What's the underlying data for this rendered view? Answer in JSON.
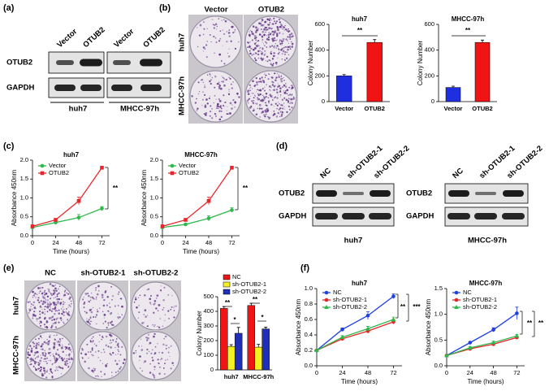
{
  "panel_labels": [
    "(a)",
    "(b)",
    "(c)",
    "(d)",
    "(e)",
    "(f)"
  ],
  "blot_a": {
    "lanes": [
      "Vector",
      "OTUB2",
      "Vector",
      "OTUB2"
    ],
    "rows": [
      "OTUB2",
      "GAPDH"
    ],
    "groups": [
      "huh7",
      "MHCC-97h"
    ]
  },
  "colony_b": {
    "columns": [
      "Vector",
      "OTUB2"
    ],
    "rows": [
      "huh7",
      "MHCC-97h"
    ]
  },
  "blot_d": [
    {
      "lanes": [
        "NC",
        "sh-OTUB2-1",
        "sh-OTUB2-2"
      ],
      "rows": [
        "OTUB2",
        "GAPDH"
      ],
      "group": "huh7"
    },
    {
      "lanes": [
        "NC",
        "sh-OTUB2-1",
        "sh-OTUB2-2"
      ],
      "rows": [
        "OTUB2",
        "GAPDH"
      ],
      "group": "MHCC-97h"
    }
  ],
  "colony_e": {
    "columns": [
      "NC",
      "sh-OTUB2-1",
      "sh-OTUB2-2"
    ],
    "rows": [
      "huh7",
      "MHCC-97h"
    ]
  },
  "chart_data": [
    {
      "type": "bar",
      "title": "huh7",
      "ylabel": "Colony Number",
      "categories": [
        "Vector",
        "OTUB2"
      ],
      "values": [
        200,
        460
      ],
      "errors": [
        10,
        22
      ],
      "colors": [
        "#1f2fe0",
        "#f01414"
      ],
      "ylim": [
        0,
        600
      ],
      "yticks": [
        0,
        200,
        400,
        600
      ],
      "annotations": [
        "**"
      ]
    },
    {
      "type": "bar",
      "title": "MHCC-97h",
      "ylabel": "Colony Number",
      "categories": [
        "Vector",
        "OTUB2"
      ],
      "values": [
        110,
        460
      ],
      "errors": [
        10,
        18
      ],
      "colors": [
        "#1f2fe0",
        "#f01414"
      ],
      "ylim": [
        0,
        600
      ],
      "yticks": [
        0,
        200,
        400,
        600
      ],
      "annotations": [
        "**"
      ]
    },
    {
      "type": "line",
      "title": "huh7",
      "xlabel": "Time (hours)",
      "ylabel": "Absorbance 450nm",
      "x": [
        0,
        24,
        48,
        72
      ],
      "xlim": [
        0,
        80
      ],
      "xticks": [
        0,
        24,
        48,
        72
      ],
      "ylim": [
        0,
        2
      ],
      "yticks": [
        {
          "value": 0,
          "label": "0.0"
        },
        0.5,
        {
          "value": 1,
          "label": "1.0"
        },
        1.5,
        {
          "value": 2,
          "label": "2.0"
        }
      ],
      "series": [
        {
          "name": "Vector",
          "color": "#2db84a",
          "marker": "circle",
          "values": [
            0.22,
            0.35,
            0.48,
            0.72
          ],
          "errors": [
            0.02,
            0.03,
            0.08,
            0.05
          ]
        },
        {
          "name": "OTUB2",
          "color": "#e8262a",
          "marker": "square",
          "values": [
            0.25,
            0.42,
            0.92,
            1.8
          ],
          "errors": [
            0.02,
            0.03,
            0.1,
            0.04
          ]
        }
      ],
      "annotations": [
        "**"
      ]
    },
    {
      "type": "line",
      "title": "MHCC-97h",
      "xlabel": "Time (hours)",
      "ylabel": "Absorbance 450nm",
      "x": [
        0,
        24,
        48,
        72
      ],
      "xlim": [
        0,
        80
      ],
      "xticks": [
        0,
        24,
        48,
        72
      ],
      "ylim": [
        0,
        2
      ],
      "yticks": [
        {
          "value": 0,
          "label": "0.0"
        },
        0.5,
        {
          "value": 1,
          "label": "1.0"
        },
        1.5,
        {
          "value": 2,
          "label": "2.0"
        }
      ],
      "series": [
        {
          "name": "Vector",
          "color": "#2db84a",
          "marker": "circle",
          "values": [
            0.22,
            0.3,
            0.46,
            0.68
          ],
          "errors": [
            0.02,
            0.03,
            0.07,
            0.06
          ]
        },
        {
          "name": "OTUB2",
          "color": "#e8262a",
          "marker": "square",
          "values": [
            0.25,
            0.42,
            0.92,
            1.8
          ],
          "errors": [
            0.02,
            0.03,
            0.1,
            0.03
          ]
        }
      ],
      "annotations": [
        "**"
      ]
    },
    {
      "type": "bar",
      "ylabel": "Colony Number",
      "categories": [
        "huh7",
        "MHCC-97h"
      ],
      "series": [
        {
          "name": "NC",
          "color": "#f01414",
          "values": [
            420,
            440
          ],
          "errors": [
            12,
            15
          ]
        },
        {
          "name": "sh-OTUB2-1",
          "color": "#f5f020",
          "values": [
            160,
            155
          ],
          "errors": [
            12,
            20
          ]
        },
        {
          "name": "sh-OTUB2-2",
          "color": "#1f2fb8",
          "values": [
            250,
            280
          ],
          "errors": [
            40,
            12
          ]
        }
      ],
      "ylim": [
        0,
        500
      ],
      "yticks": [
        0,
        100,
        200,
        300,
        400,
        500
      ],
      "annotations": [
        "**",
        "*",
        "**",
        "*"
      ]
    },
    {
      "type": "line",
      "title": "huh7",
      "xlabel": "Time (hours)",
      "ylabel": "Absorbance 450nm",
      "x": [
        0,
        24,
        48,
        72
      ],
      "xlim": [
        0,
        80
      ],
      "xticks": [
        0,
        24,
        48,
        72
      ],
      "ylim": [
        0,
        1
      ],
      "yticks": [
        {
          "value": 0,
          "label": "0.0"
        },
        0.2,
        0.4,
        0.6,
        0.8,
        {
          "value": 1,
          "label": "1.0"
        }
      ],
      "series": [
        {
          "name": "NC",
          "color": "#1f3fe0",
          "marker": "circle",
          "values": [
            0.2,
            0.47,
            0.65,
            0.9
          ],
          "errors": [
            0.01,
            0.02,
            0.05,
            0.03
          ]
        },
        {
          "name": "sh-OTUB2-1",
          "color": "#e8262a",
          "marker": "circle",
          "values": [
            0.2,
            0.35,
            0.45,
            0.57
          ],
          "errors": [
            0.01,
            0.02,
            0.03,
            0.03
          ]
        },
        {
          "name": "sh-OTUB2-2",
          "color": "#2db84a",
          "marker": "triangle",
          "values": [
            0.2,
            0.37,
            0.48,
            0.6
          ],
          "errors": [
            0.01,
            0.02,
            0.03,
            0.03
          ]
        }
      ],
      "annotations": [
        "**",
        "***"
      ]
    },
    {
      "type": "line",
      "title": "MHCC-97h",
      "xlabel": "Time (hours)",
      "ylabel": "Absorbance 450nm",
      "x": [
        0,
        24,
        48,
        72
      ],
      "xlim": [
        0,
        80
      ],
      "xticks": [
        0,
        24,
        48,
        72
      ],
      "ylim": [
        0,
        1.5
      ],
      "yticks": [
        {
          "value": 0,
          "label": "0.0"
        },
        0.5,
        {
          "value": 1,
          "label": "1.0"
        },
        1.5
      ],
      "series": [
        {
          "name": "NC",
          "color": "#1f3fe0",
          "marker": "circle",
          "values": [
            0.2,
            0.45,
            0.7,
            1.02
          ],
          "errors": [
            0.01,
            0.02,
            0.04,
            0.12
          ]
        },
        {
          "name": "sh-OTUB2-1",
          "color": "#e8262a",
          "marker": "circle",
          "values": [
            0.2,
            0.33,
            0.42,
            0.55
          ],
          "errors": [
            0.01,
            0.02,
            0.03,
            0.03
          ]
        },
        {
          "name": "sh-OTUB2-2",
          "color": "#2db84a",
          "marker": "triangle",
          "values": [
            0.2,
            0.35,
            0.45,
            0.58
          ],
          "errors": [
            0.01,
            0.02,
            0.03,
            0.03
          ]
        }
      ],
      "annotations": [
        "**",
        "**"
      ]
    }
  ]
}
